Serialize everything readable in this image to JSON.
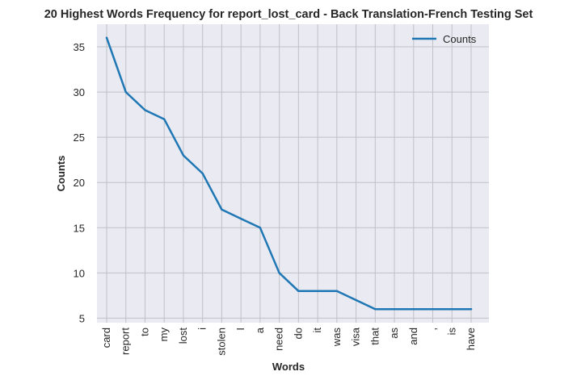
{
  "chart_data": {
    "type": "line",
    "title": "20 Highest Words Frequency for report_lost_card - Back Translation-French Testing Set",
    "xlabel": "Words",
    "ylabel": "Counts",
    "categories": [
      "card",
      "report",
      "to",
      "my",
      "lost",
      "i",
      "stolen",
      "I",
      "a",
      "need",
      "do",
      "it",
      "was",
      "visa",
      "that",
      "as",
      "and",
      ",",
      "is",
      "have"
    ],
    "series": [
      {
        "name": "Counts",
        "values": [
          36,
          30,
          28,
          27,
          23,
          21,
          17,
          16,
          15,
          10,
          8,
          8,
          8,
          7,
          6,
          6,
          6,
          6,
          6,
          6
        ]
      }
    ],
    "ylim": [
      4.5,
      37.5
    ],
    "yticks": [
      5,
      10,
      15,
      20,
      25,
      30,
      35
    ],
    "grid": true,
    "legend_position": "top-right",
    "colors": {
      "line": "#1f77b4",
      "plot_bg": "#eaeaf2",
      "grid": "#c0c0c6",
      "text": "#262626"
    }
  }
}
